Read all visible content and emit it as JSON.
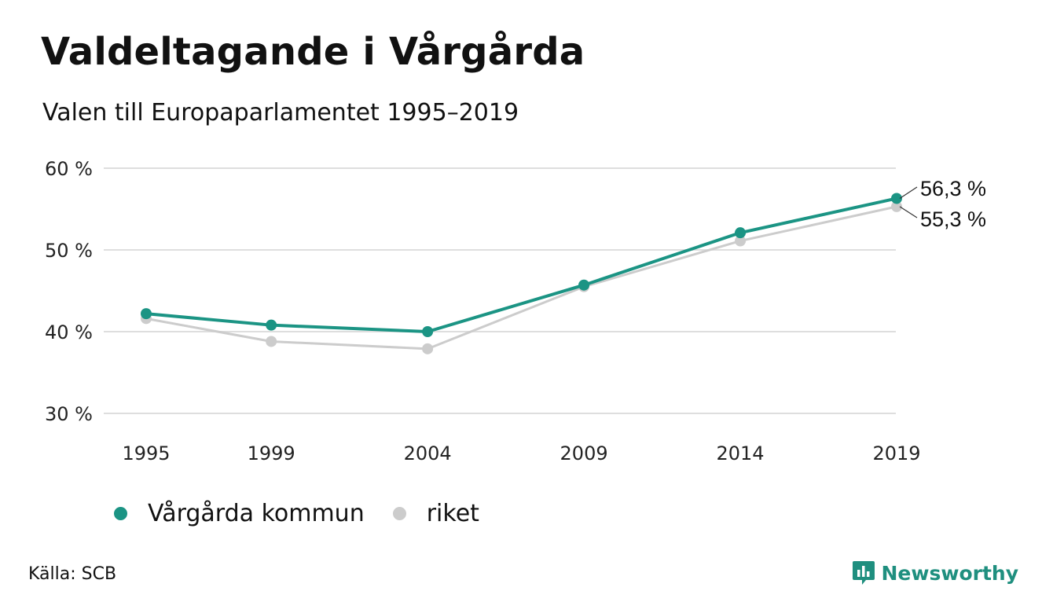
{
  "title": "Valdeltagande i Vårgårda",
  "subtitle": "Valen till Europaparlamentet 1995–2019",
  "source": "Källa: SCB",
  "brand": {
    "name": "Newsworthy",
    "icon": "newsworthy-logo-icon",
    "color": "#1f8f7f"
  },
  "chart_data": {
    "type": "line",
    "x": [
      "1995",
      "1999",
      "2004",
      "2009",
      "2014",
      "2019"
    ],
    "ylim": [
      30,
      60
    ],
    "yticks": [
      60,
      50,
      40,
      30
    ],
    "ytick_labels": [
      "60 %",
      "50 %",
      "40 %",
      "30 %"
    ],
    "grid": true,
    "legend_position": "bottom-left",
    "series": [
      {
        "name": "Vårgårda kommun",
        "values": [
          42.2,
          40.8,
          40.0,
          45.7,
          52.1,
          56.3
        ],
        "color": "#1b9484",
        "end_label": "56,3 %"
      },
      {
        "name": "riket",
        "values": [
          41.6,
          38.8,
          37.9,
          45.5,
          51.1,
          55.3
        ],
        "color": "#cccccc",
        "end_label": "55,3 %"
      }
    ]
  }
}
